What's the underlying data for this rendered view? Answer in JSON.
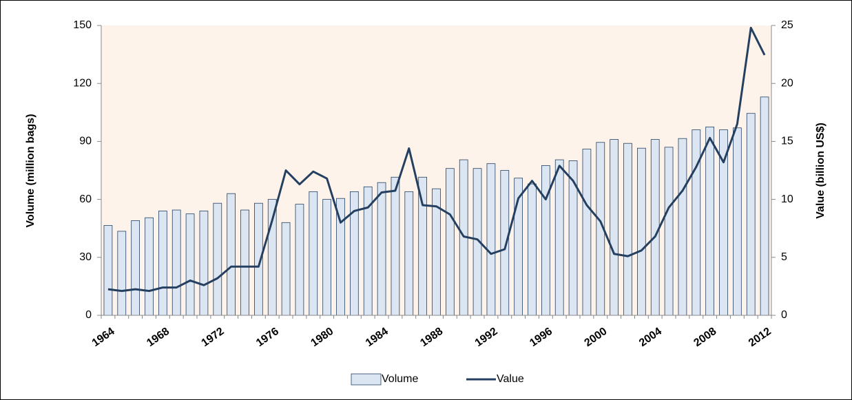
{
  "chart_data": {
    "type": "bar-line",
    "y_label": "Volume (million bags)",
    "y2_label": "Value (billion US$)",
    "categories": [
      "1964",
      null,
      null,
      null,
      "1968",
      null,
      null,
      null,
      "1972",
      null,
      null,
      null,
      "1976",
      null,
      null,
      null,
      "1980",
      null,
      null,
      null,
      "1984",
      null,
      null,
      null,
      "1988",
      null,
      null,
      null,
      "1992",
      null,
      null,
      null,
      "1996",
      null,
      null,
      null,
      "2000",
      null,
      null,
      null,
      "2004",
      null,
      null,
      null,
      "2008",
      null,
      null,
      null,
      "2012"
    ],
    "series": [
      {
        "name": "Volume",
        "type": "bar",
        "color": "#dce6f2",
        "edge_color": "#243f60",
        "values": [
          46.5,
          43.5,
          49,
          50.5,
          54,
          54.5,
          52.5,
          54,
          58,
          63,
          54.5,
          58,
          60,
          48,
          57.5,
          64,
          60,
          60.5,
          64,
          66.5,
          68.7,
          71.5,
          64,
          71.5,
          65.5,
          76,
          80.5,
          76,
          78.5,
          75,
          71,
          68,
          77.5,
          80.5,
          80,
          86,
          89.5,
          91,
          89,
          86.5,
          91,
          87,
          91.5,
          96,
          97.5,
          96,
          97,
          104.5,
          113
        ]
      },
      {
        "name": "Value",
        "type": "line",
        "axis": "y2",
        "color": "#243f60",
        "values": [
          2.25,
          2.1,
          2.25,
          2.1,
          2.4,
          2.4,
          3.0,
          2.6,
          3.2,
          4.2,
          4.2,
          4.2,
          8.2,
          12.5,
          11.3,
          12.4,
          11.8,
          8.0,
          9.0,
          9.3,
          10.6,
          10.75,
          14.4,
          9.5,
          9.4,
          8.7,
          6.8,
          6.55,
          5.3,
          5.7,
          10.1,
          11.6,
          10.0,
          12.9,
          11.6,
          9.5,
          8.1,
          5.3,
          5.1,
          5.6,
          6.8,
          9.3,
          10.75,
          12.8,
          15.3,
          13.2,
          16.5,
          24.8,
          22.45
        ]
      }
    ],
    "ylim": [
      0,
      150
    ],
    "yticks": [
      0,
      30,
      60,
      90,
      120,
      150
    ],
    "y2lim": [
      0,
      25
    ],
    "y2ticks": [
      0,
      5,
      10,
      15,
      20,
      25
    ],
    "grid": false,
    "legend": "bottom",
    "plot_background": "#fdf3ea"
  }
}
